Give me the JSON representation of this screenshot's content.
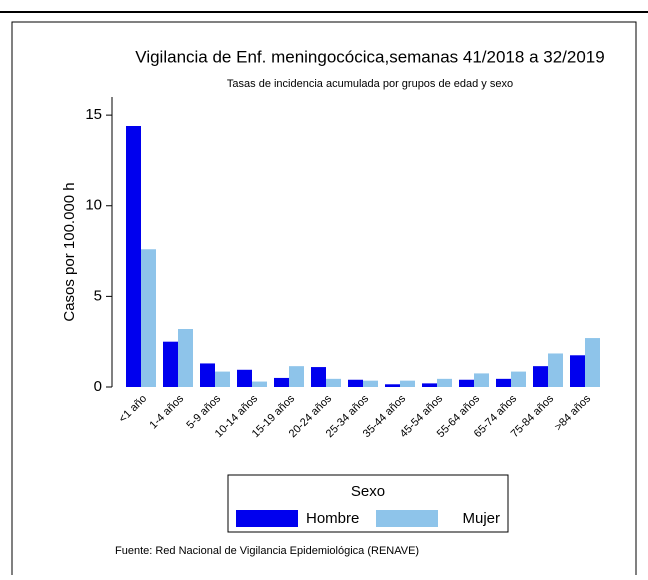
{
  "chart_data": {
    "type": "bar",
    "title": "Vigilancia de Enf. meningocócica,semanas 41/2018 a 32/2019",
    "subtitle": "Tasas de incidencia acumulada por grupos de edad y sexo",
    "y_label": "Casos por 100.000 h",
    "categories": [
      "<1 año",
      "1-4 años",
      "5-9 años",
      "10-14 años",
      "15-19 años",
      "20-24 años",
      "25-34 años",
      "35-44 años",
      "45-54 años",
      "55-64 años",
      "65-74 años",
      "75-84 años",
      ">84 años"
    ],
    "series": [
      {
        "name": "Hombre",
        "color": "#0000ee",
        "values": [
          14.4,
          2.5,
          1.3,
          0.95,
          0.5,
          1.1,
          0.4,
          0.15,
          0.2,
          0.4,
          0.45,
          1.15,
          1.75
        ]
      },
      {
        "name": "Mujer",
        "color": "#8ec4ea",
        "values": [
          7.6,
          3.2,
          0.85,
          0.3,
          1.15,
          0.45,
          0.35,
          0.35,
          0.45,
          0.75,
          0.85,
          1.85,
          2.7
        ]
      }
    ],
    "ylim": [
      0,
      16
    ],
    "yticks": [
      0,
      5,
      10,
      15
    ],
    "legend_title": "Sexo",
    "footer": "Fuente: Red Nacional de Vigilancia Epidemiológica (RENAVE)"
  }
}
